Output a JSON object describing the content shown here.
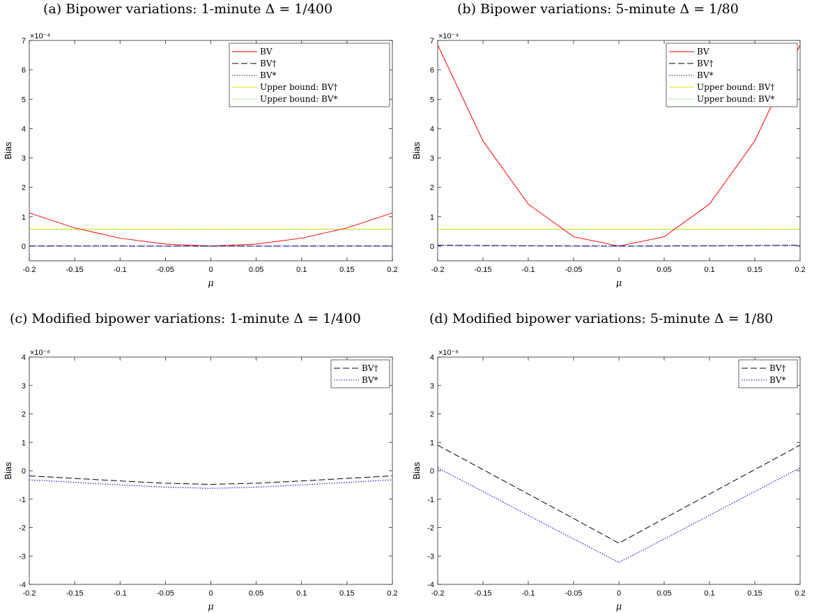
{
  "captions": [
    "(a) Bipower variations: 1-minute Δ = 1/400",
    "(b) Bipower variations: 5-minute Δ = 1/80",
    "(c) Modified bipower variations: 1-minute Δ = 1/400",
    "(d) Modified bipower variations: 5-minute Δ = 1/80"
  ],
  "colors": {
    "bv": "#ff0000",
    "bv_dagger": "#000000",
    "bv_star": "#0000ff",
    "upper_dagger": "#e6e600",
    "upper_star": "#66dd33"
  },
  "chart_data": [
    {
      "type": "line",
      "xlabel": "μ",
      "ylabel": "Bias",
      "multiplier": "×10⁻⁴",
      "xlim": [
        -0.2,
        0.2
      ],
      "ylim": [
        -0.5,
        7
      ],
      "xticks": [
        "-0.2",
        "-0.15",
        "-0.1",
        "-0.05",
        "0",
        "0.05",
        "0.1",
        "0.15",
        "0.2"
      ],
      "yticks": [
        "0",
        "1",
        "2",
        "3",
        "4",
        "5",
        "6",
        "7"
      ],
      "legend_position": "top-right",
      "x": [
        -0.2,
        -0.15,
        -0.1,
        -0.05,
        0,
        0.05,
        0.1,
        0.15,
        0.2
      ],
      "series": [
        {
          "name": "BV",
          "style": "solid",
          "color": "#ff0000",
          "values": [
            1.13,
            0.62,
            0.27,
            0.07,
            0.0,
            0.07,
            0.27,
            0.62,
            1.13
          ]
        },
        {
          "name": "BV†",
          "style": "dashed",
          "color": "#000000",
          "values": [
            0.005,
            0.004,
            0.003,
            0.002,
            0.002,
            0.002,
            0.003,
            0.004,
            0.005
          ]
        },
        {
          "name": "BV*",
          "style": "dotted",
          "color": "#0000ff",
          "values": [
            0.004,
            0.003,
            0.002,
            0.001,
            0.001,
            0.001,
            0.002,
            0.003,
            0.004
          ]
        },
        {
          "name": "Upper bound: BV†",
          "style": "solid",
          "color": "#e6e600",
          "values": [
            0.57,
            0.57,
            0.57,
            0.57,
            0.57,
            0.57,
            0.57,
            0.57,
            0.57
          ]
        },
        {
          "name": "Upper bound: BV*",
          "style": "dotted",
          "color": "#66dd33",
          "values": [
            0.57,
            0.57,
            0.57,
            0.57,
            0.57,
            0.57,
            0.57,
            0.57,
            0.57
          ]
        }
      ]
    },
    {
      "type": "line",
      "xlabel": "μ",
      "ylabel": "Bias",
      "multiplier": "×10⁻⁴",
      "xlim": [
        -0.2,
        0.2
      ],
      "ylim": [
        -0.5,
        7
      ],
      "xticks": [
        "-0.2",
        "-0.15",
        "-0.1",
        "-0.05",
        "0",
        "0.05",
        "0.1",
        "0.15",
        "0.2"
      ],
      "yticks": [
        "0",
        "1",
        "2",
        "3",
        "4",
        "5",
        "6",
        "7"
      ],
      "legend_position": "top-right",
      "x": [
        -0.2,
        -0.15,
        -0.1,
        -0.05,
        0,
        0.05,
        0.1,
        0.15,
        0.2
      ],
      "series": [
        {
          "name": "BV",
          "style": "solid",
          "color": "#ff0000",
          "values": [
            6.85,
            3.58,
            1.43,
            0.32,
            0.0,
            0.32,
            1.43,
            3.58,
            6.85
          ]
        },
        {
          "name": "BV†",
          "style": "dashed",
          "color": "#000000",
          "values": [
            0.03,
            0.02,
            0.01,
            0.005,
            0.0,
            0.005,
            0.01,
            0.02,
            0.03
          ]
        },
        {
          "name": "BV*",
          "style": "dotted",
          "color": "#0000ff",
          "values": [
            0.02,
            0.015,
            0.008,
            0.003,
            0.0,
            0.003,
            0.008,
            0.015,
            0.02
          ]
        },
        {
          "name": "Upper bound: BV†",
          "style": "solid",
          "color": "#e6e600",
          "values": [
            0.57,
            0.57,
            0.57,
            0.57,
            0.57,
            0.57,
            0.57,
            0.57,
            0.57
          ]
        },
        {
          "name": "Upper bound: BV*",
          "style": "dotted",
          "color": "#66dd33",
          "values": [
            0.57,
            0.57,
            0.57,
            0.57,
            0.57,
            0.57,
            0.57,
            0.57,
            0.57
          ]
        }
      ]
    },
    {
      "type": "line",
      "xlabel": "μ",
      "ylabel": "Bias",
      "multiplier": "×10⁻⁶",
      "xlim": [
        -0.2,
        0.2
      ],
      "ylim": [
        -4,
        4
      ],
      "xticks": [
        "-0.2",
        "-0.15",
        "-0.1",
        "-0.05",
        "0",
        "0.05",
        "0.1",
        "0.15",
        "0.2"
      ],
      "yticks": [
        "-4",
        "-3",
        "-2",
        "-1",
        "0",
        "1",
        "2",
        "3",
        "4"
      ],
      "legend_position": "top-right",
      "x": [
        -0.2,
        -0.15,
        -0.1,
        -0.05,
        0,
        0.05,
        0.1,
        0.15,
        0.2
      ],
      "series": [
        {
          "name": "BV†",
          "style": "dashed",
          "color": "#000000",
          "values": [
            -0.18,
            -0.27,
            -0.36,
            -0.44,
            -0.48,
            -0.44,
            -0.36,
            -0.27,
            -0.18
          ]
        },
        {
          "name": "BV*",
          "style": "dotted",
          "color": "#0000ff",
          "values": [
            -0.32,
            -0.41,
            -0.5,
            -0.58,
            -0.62,
            -0.58,
            -0.5,
            -0.41,
            -0.32
          ]
        }
      ]
    },
    {
      "type": "line",
      "xlabel": "μ",
      "ylabel": "Bias",
      "multiplier": "×10⁻⁶",
      "xlim": [
        -0.2,
        0.2
      ],
      "ylim": [
        -4,
        4
      ],
      "xticks": [
        "-0.2",
        "-0.15",
        "-0.1",
        "-0.05",
        "0",
        "0.05",
        "0.1",
        "0.15",
        "0.2"
      ],
      "yticks": [
        "-4",
        "-3",
        "-2",
        "-1",
        "0",
        "1",
        "2",
        "3",
        "4"
      ],
      "legend_position": "top-right",
      "x": [
        -0.2,
        -0.15,
        -0.1,
        -0.05,
        0,
        0.05,
        0.1,
        0.15,
        0.2
      ],
      "series": [
        {
          "name": "BV†",
          "style": "dashed",
          "color": "#000000",
          "values": [
            0.9,
            0.04,
            -0.82,
            -1.68,
            -2.55,
            -1.68,
            -0.82,
            0.04,
            0.9
          ]
        },
        {
          "name": "BV*",
          "style": "dotted",
          "color": "#0000ff",
          "values": [
            0.1,
            -0.73,
            -1.57,
            -2.4,
            -3.23,
            -2.4,
            -1.57,
            -0.73,
            0.1
          ]
        }
      ]
    }
  ]
}
